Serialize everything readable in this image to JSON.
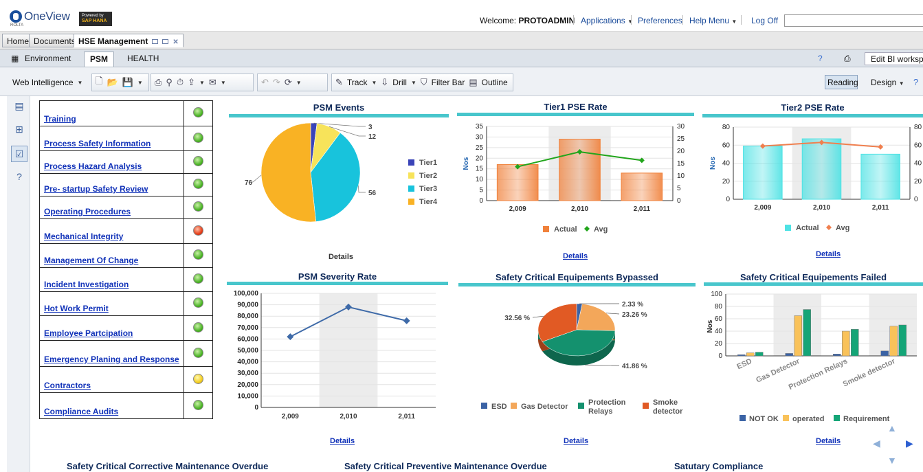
{
  "header": {
    "logo_name": "OneView",
    "logo_sub": "ROLTA",
    "hana_line1": "Powered by",
    "hana_line2": "SAP HANA",
    "welcome_label": "Welcome:",
    "welcome_user": "PROTOADMIN",
    "applications": "Applications",
    "preferences": "Preferences",
    "help_menu": "Help Menu",
    "log_off": "Log Off"
  },
  "tabs": {
    "home": "Home",
    "documents": "Documents",
    "hse": "HSE Management"
  },
  "subtabs": {
    "environment": "Environment",
    "psm": "PSM",
    "health": "HEALTH",
    "edit_bi": "Edit BI workspace"
  },
  "toolbar": {
    "web_intelligence": "Web Intelligence",
    "track": "Track",
    "drill": "Drill",
    "filter_bar": "Filter Bar",
    "outline": "Outline",
    "reading": "Reading",
    "design": "Design"
  },
  "elements": [
    {
      "label": "Training",
      "status": "green"
    },
    {
      "label": "Process Safety Information",
      "status": "green"
    },
    {
      "label": "Process Hazard Analysis",
      "status": "green"
    },
    {
      "label": "Pre- startup Safety Review",
      "status": "green"
    },
    {
      "label": "Operating Procedures",
      "status": "green"
    },
    {
      "label": "Mechanical Integrity",
      "status": "red"
    },
    {
      "label": "Management Of Change",
      "status": "green"
    },
    {
      "label": "Incident Investigation",
      "status": "green"
    },
    {
      "label": "Hot Work Permit",
      "status": "green"
    },
    {
      "label": "Employee Partcipation",
      "status": "green"
    },
    {
      "label": "Emergency Planing and Response",
      "status": "green"
    },
    {
      "label": "Contractors",
      "status": "yellow"
    },
    {
      "label": "Compliance Audits",
      "status": "green"
    }
  ],
  "details_label": "Details",
  "bottom_titles": [
    "Safety Critical Corrective Maintenance Overdue",
    "Safety Critical Preventive Maintenance Overdue",
    "Satutary Compliance"
  ],
  "chart_data": [
    {
      "id": "psm_events",
      "type": "pie",
      "title": "PSM Events",
      "xlabel": "Details",
      "categories": [
        "Tier1",
        "Tier2",
        "Tier3",
        "Tier4"
      ],
      "values": [
        3,
        12,
        56,
        76
      ],
      "colors": [
        "#3a44b8",
        "#f7e35a",
        "#18c3dc",
        "#f9b224"
      ],
      "legend": "right"
    },
    {
      "id": "tier1",
      "type": "bar",
      "title": "Tier1 PSE Rate",
      "ylabel": "Nos",
      "categories": [
        "2,009",
        "2,010",
        "2,011"
      ],
      "series": [
        {
          "name": "Actual",
          "type": "bar",
          "values": [
            17,
            29,
            13
          ]
        },
        {
          "name": "Avg",
          "type": "line",
          "values": [
            16,
            23,
            19
          ]
        }
      ],
      "ylim": [
        0,
        35
      ],
      "yticks": [
        "0",
        "5",
        "10",
        "15",
        "20",
        "25",
        "30",
        "35"
      ],
      "y2ticks": [
        "0",
        "5",
        "10",
        "15",
        "20",
        "25",
        "30"
      ],
      "colors": [
        "#f0813b",
        "#21a51b"
      ],
      "legend": "bottom"
    },
    {
      "id": "tier2",
      "type": "bar",
      "title": "Tier2 PSE Rate",
      "ylabel": "Nos",
      "categories": [
        "2,009",
        "2,010",
        "2,011"
      ],
      "series": [
        {
          "name": "Actual",
          "type": "bar",
          "values": [
            59,
            67,
            50
          ]
        },
        {
          "name": "Avg",
          "type": "line",
          "values": [
            59,
            63,
            58
          ]
        }
      ],
      "ylim": [
        0,
        80
      ],
      "yticks": [
        "0",
        "20",
        "40",
        "60",
        "80"
      ],
      "y2ticks": [
        "0",
        "20",
        "40",
        "60",
        "80"
      ],
      "colors": [
        "#4ee2e4",
        "#f07f4e"
      ],
      "legend": "bottom"
    },
    {
      "id": "severity",
      "type": "line",
      "title": "PSM Severity Rate",
      "categories": [
        "2,009",
        "2,010",
        "2,011"
      ],
      "series": [
        {
          "values": [
            62000,
            88000,
            76000
          ]
        }
      ],
      "ylim": [
        0,
        100000
      ],
      "yticks": [
        "0",
        "10,000",
        "20,000",
        "30,000",
        "40,000",
        "50,000",
        "60,000",
        "70,000",
        "80,000",
        "90,000",
        "100,000"
      ],
      "colors": [
        "#3e6aa8"
      ]
    },
    {
      "id": "bypassed",
      "type": "pie",
      "title": "Safety Critical Equipements Bypassed",
      "categories": [
        "ESD",
        "Gas Detector",
        "Protection Relays",
        "Smoke detector"
      ],
      "values": [
        2.33,
        23.26,
        41.86,
        32.56
      ],
      "value_labels": [
        "2.33 %",
        "23.26 %",
        "41.86 %",
        "32.56 %"
      ],
      "colors": [
        "#3b63a5",
        "#f3a75a",
        "#14916e",
        "#e15a24"
      ],
      "legend": "bottom"
    },
    {
      "id": "failed",
      "type": "bar",
      "title": "Safety Critical Equipements Failed",
      "ylabel": "Nos",
      "categories": [
        "ESD",
        "Gas Detector",
        "Protection Relays",
        "Smoke detector"
      ],
      "series": [
        {
          "name": "NOT OK",
          "values": [
            2,
            4,
            3,
            8
          ]
        },
        {
          "name": "operated",
          "values": [
            5,
            65,
            40,
            48
          ]
        },
        {
          "name": "Requirement",
          "values": [
            6,
            75,
            43,
            50
          ]
        }
      ],
      "ylim": [
        0,
        100
      ],
      "yticks": [
        "0",
        "20",
        "40",
        "60",
        "80",
        "100"
      ],
      "colors": [
        "#3b63a5",
        "#f9c25a",
        "#14a577"
      ],
      "legend": "bottom"
    }
  ]
}
